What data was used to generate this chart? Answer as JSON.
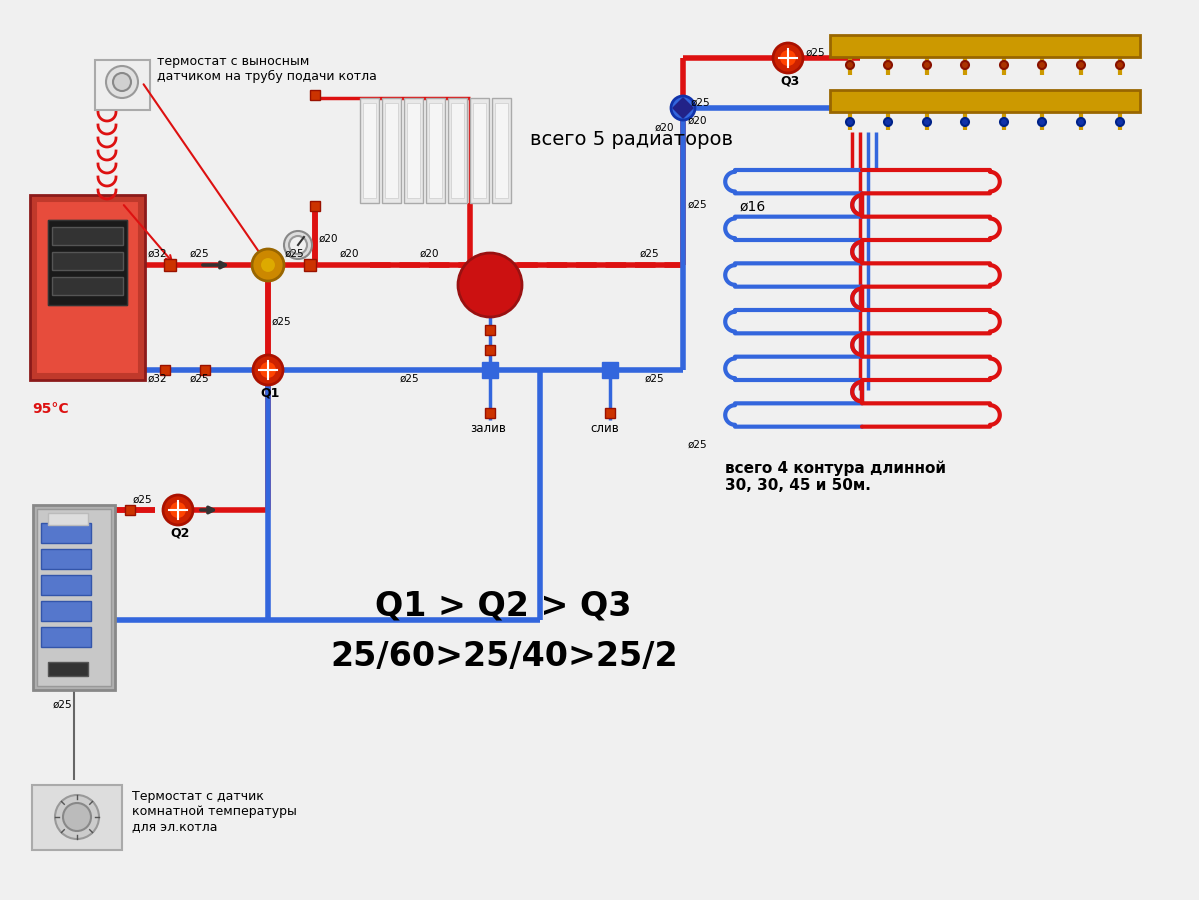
{
  "bg_color": "#f0f0f0",
  "pipe_red": "#dd1111",
  "pipe_blue": "#3366dd",
  "annotations": {
    "thermostat_top": "термостат с выносным\nдатчиком на трубу подачи котла",
    "radiators": "всего 5 радиаторов",
    "temp_label": "95°С",
    "q1": "Q1",
    "q2": "Q2",
    "q3": "Q3",
    "zaliv": "залив",
    "sliv": "слив",
    "floor_circuits": "всего 4 контура длинной\n30, 30, 45 и 50м.",
    "d16": "ø16",
    "formula_line1": "Q1 > Q2 > Q3",
    "formula_line2": "25/60>25/40>25/2",
    "thermostat_bottom": "Термостат с датчик\nкомнатной температуры\nдля эл.котла",
    "d32": "ø32",
    "d25": "ø25",
    "d20": "ø20"
  }
}
